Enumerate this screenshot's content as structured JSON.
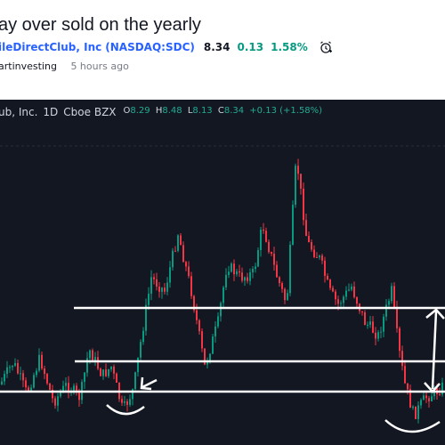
{
  "idea": {
    "title": "ay over sold on the yearly",
    "symbol_name": "ileDirectClub, Inc",
    "symbol_ticker": "(NASDAQ:SDC)",
    "price": "8.34",
    "change": "0.13",
    "change_pct": "1.58%",
    "author": "artinvesting",
    "time_ago": "5 hours ago"
  },
  "legend": {
    "name": "ub, Inc.",
    "interval": "1D",
    "exchange": "Cboe BZX",
    "o_label": "O",
    "o_value": "8.29",
    "h_label": "H",
    "h_value": "8.48",
    "l_label": "L",
    "l_value": "8.13",
    "c_label": "C",
    "c_value": "8.34",
    "delta": "+0.13 (+1.58%)"
  },
  "colors": {
    "bg": "#131722",
    "up": "#089981",
    "down": "#f23645",
    "link": "#2962ff",
    "drawing": "#ffffff"
  },
  "icons": {
    "alert": "alarm-clock-plus-icon"
  },
  "chart_data": {
    "type": "candlestick",
    "interval": "1D",
    "annotations": [
      "3 horizontal support/resistance lines",
      "2 arcs marking double bottom",
      "arrow pointing to support",
      "double-headed vertical arrow"
    ]
  }
}
